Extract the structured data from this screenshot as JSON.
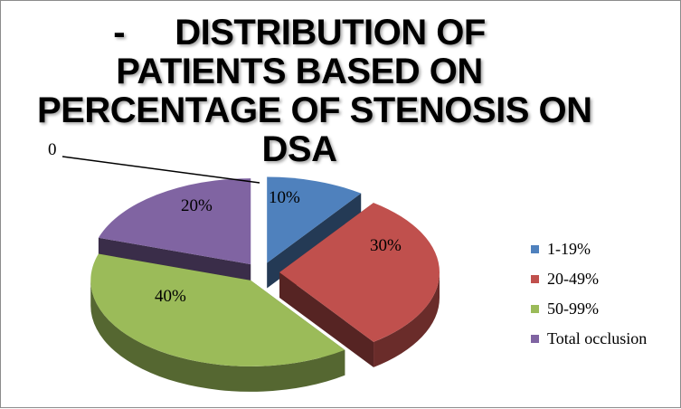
{
  "chart_data": {
    "type": "pie",
    "title_lines": [
      "-",
      "DISTRIBUTION OF",
      "PATIENTS  BASED ON",
      "PERCENTAGE OF STENOSIS ON",
      "DSA"
    ],
    "categories": [
      "1-19%",
      "20-49%",
      "50-99%",
      "Total occlusion"
    ],
    "values": [
      10,
      30,
      40,
      20
    ],
    "data_labels": [
      "10%",
      "30%",
      "40%",
      "20%"
    ],
    "extra_label": "0",
    "colors": [
      "#4f81bd",
      "#c0504d",
      "#9bbb59",
      "#8064a2"
    ],
    "legend_position": "right",
    "three_d": true,
    "exploded": true
  }
}
